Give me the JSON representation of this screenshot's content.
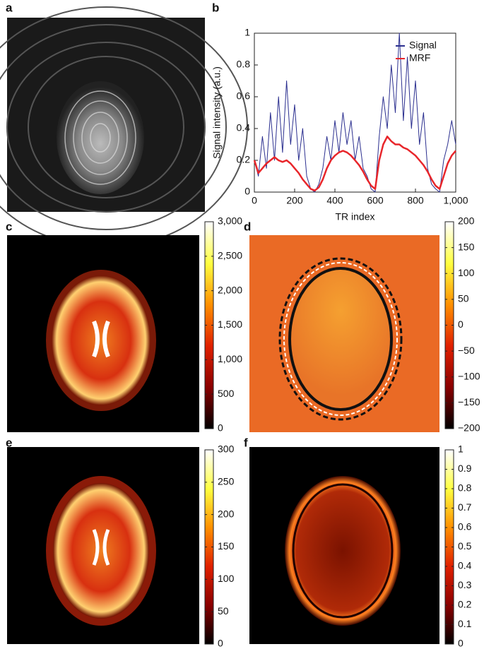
{
  "chart_data": [
    {
      "type": "image",
      "label": "a"
    },
    {
      "type": "line",
      "label": "b",
      "xlabel": "TR index",
      "ylabel": "Signal intensity (a.u.)",
      "x": [
        0,
        20,
        40,
        60,
        80,
        100,
        120,
        140,
        160,
        180,
        200,
        220,
        240,
        260,
        280,
        300,
        320,
        340,
        360,
        380,
        400,
        420,
        440,
        460,
        480,
        500,
        520,
        540,
        560,
        580,
        600,
        620,
        640,
        660,
        680,
        700,
        720,
        740,
        760,
        780,
        800,
        820,
        840,
        860,
        880,
        900,
        920,
        940,
        960,
        980,
        1000
      ],
      "series": [
        {
          "name": "Signal",
          "color": "#2b2f8f",
          "values": [
            0.2,
            0.1,
            0.35,
            0.15,
            0.5,
            0.2,
            0.6,
            0.25,
            0.7,
            0.3,
            0.55,
            0.2,
            0.4,
            0.1,
            0.02,
            0.0,
            0.05,
            0.15,
            0.35,
            0.2,
            0.45,
            0.25,
            0.5,
            0.3,
            0.45,
            0.2,
            0.35,
            0.15,
            0.1,
            0.02,
            0.0,
            0.35,
            0.6,
            0.4,
            0.8,
            0.5,
            1.0,
            0.45,
            0.85,
            0.4,
            0.7,
            0.3,
            0.5,
            0.15,
            0.05,
            0.02,
            0.0,
            0.2,
            0.3,
            0.45,
            0.3
          ]
        },
        {
          "name": "MRF",
          "color": "#e8262b",
          "values": [
            0.2,
            0.12,
            0.15,
            0.18,
            0.2,
            0.22,
            0.2,
            0.19,
            0.2,
            0.18,
            0.15,
            0.12,
            0.08,
            0.05,
            0.02,
            0.01,
            0.03,
            0.08,
            0.15,
            0.2,
            0.23,
            0.25,
            0.26,
            0.25,
            0.23,
            0.2,
            0.17,
            0.13,
            0.08,
            0.04,
            0.02,
            0.2,
            0.3,
            0.35,
            0.32,
            0.3,
            0.3,
            0.28,
            0.27,
            0.25,
            0.23,
            0.2,
            0.17,
            0.13,
            0.08,
            0.04,
            0.02,
            0.1,
            0.18,
            0.23,
            0.26
          ]
        }
      ],
      "xlim": [
        0,
        1000
      ],
      "xticks": [
        0,
        200,
        400,
        600,
        800,
        {
          "value": 1000,
          "label": "1,000"
        }
      ],
      "ylim": [
        0,
        1
      ],
      "yticks": [
        0,
        0.2,
        0.4,
        0.6,
        0.8,
        1
      ],
      "legend": "upper right"
    },
    {
      "type": "colorbar",
      "label": "c",
      "colormap": [
        "#000000",
        "#8a0000",
        "#e02000",
        "#ff9000",
        "#ffff40",
        "#ffffff"
      ],
      "ylim": [
        0,
        3000
      ],
      "yticks": [
        0,
        500,
        {
          "value": 1000,
          "label": "1,000"
        },
        {
          "value": 1500,
          "label": "1,500"
        },
        {
          "value": 2000,
          "label": "2,000"
        },
        {
          "value": 2500,
          "label": "2,500"
        },
        {
          "value": 3000,
          "label": "3,000"
        }
      ]
    },
    {
      "type": "colorbar",
      "label": "d",
      "colormap": [
        "#000000",
        "#8a0000",
        "#e02000",
        "#ff9000",
        "#ffff40",
        "#ffffff"
      ],
      "ylim": [
        -200,
        200
      ],
      "yticks": [
        {
          "value": -200,
          "label": "−200"
        },
        {
          "value": -150,
          "label": "−150"
        },
        {
          "value": -100,
          "label": "−100"
        },
        {
          "value": -50,
          "label": "−50"
        },
        0,
        50,
        100,
        150,
        200
      ]
    },
    {
      "type": "colorbar",
      "label": "e",
      "colormap": [
        "#000000",
        "#8a0000",
        "#e02000",
        "#ff9000",
        "#ffff40",
        "#ffffff"
      ],
      "ylim": [
        0,
        300
      ],
      "yticks": [
        0,
        50,
        100,
        150,
        200,
        250,
        300
      ]
    },
    {
      "type": "colorbar",
      "label": "f",
      "colormap": [
        "#000000",
        "#8a0000",
        "#e02000",
        "#ff9000",
        "#ffff40",
        "#ffffff"
      ],
      "ylim": [
        0,
        1
      ],
      "yticks": [
        0,
        0.1,
        0.2,
        0.3,
        0.4,
        0.5,
        0.6,
        0.7,
        0.8,
        0.9,
        1
      ]
    }
  ]
}
